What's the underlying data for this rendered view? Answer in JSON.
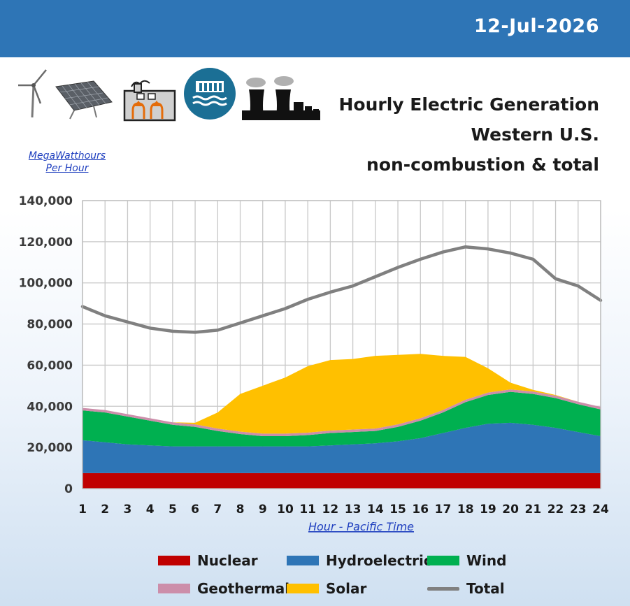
{
  "header": {
    "date": "12-Jul-2026",
    "banner_color": "#2e75b6"
  },
  "icons": [
    "wind-turbine-icon",
    "solar-panel-icon",
    "geothermal-plant-icon",
    "hydro-dam-icon",
    "nuclear-plant-icon"
  ],
  "title": {
    "line1": "Hourly Electric Generation",
    "line2": "Western U.S.",
    "line3": "non-combustion & total"
  },
  "unit_label": {
    "line1": "MegaWatthours",
    "line2": "Per Hour"
  },
  "chart_data": {
    "type": "area",
    "stacked": true,
    "title": "Hourly Electric Generation Western U.S. non-combustion & total",
    "xlabel": "Hour - Pacific Time",
    "ylabel": "MegaWatthours Per Hour",
    "x": [
      1,
      2,
      3,
      4,
      5,
      6,
      7,
      8,
      9,
      10,
      11,
      12,
      13,
      14,
      15,
      16,
      17,
      18,
      19,
      20,
      21,
      22,
      23,
      24
    ],
    "ylim": [
      0,
      140000
    ],
    "yticks": [
      "0",
      "20,000",
      "40,000",
      "60,000",
      "80,000",
      "100,000",
      "120,000",
      "140,000"
    ],
    "ytick_values": [
      0,
      20000,
      40000,
      60000,
      80000,
      100000,
      120000,
      140000
    ],
    "grid": true,
    "legend_position": "bottom",
    "series": [
      {
        "name": "Nuclear",
        "color": "#c00000",
        "kind": "area",
        "values": [
          7500,
          7500,
          7500,
          7500,
          7500,
          7500,
          7500,
          7500,
          7500,
          7500,
          7500,
          7500,
          7500,
          7500,
          7500,
          7500,
          7500,
          7500,
          7500,
          7500,
          7500,
          7500,
          7500,
          7500
        ]
      },
      {
        "name": "Hydroelectric",
        "color": "#2e75b6",
        "kind": "area",
        "values": [
          16000,
          15000,
          14000,
          13500,
          13000,
          13000,
          13000,
          13000,
          13000,
          13000,
          13000,
          13500,
          14000,
          14500,
          15500,
          17000,
          19500,
          22000,
          24000,
          24500,
          23500,
          22000,
          20000,
          18000
        ]
      },
      {
        "name": "Wind",
        "color": "#00b050",
        "kind": "area",
        "values": [
          14500,
          14500,
          13500,
          12000,
          10500,
          9500,
          7500,
          6000,
          5000,
          5000,
          5500,
          6000,
          6000,
          6000,
          7000,
          8500,
          10000,
          12500,
          14000,
          15000,
          15000,
          14500,
          13500,
          13000
        ]
      },
      {
        "name": "Geothermal",
        "color": "#cc8eaa",
        "kind": "area",
        "values": [
          1200,
          1200,
          1200,
          1200,
          1200,
          1200,
          1200,
          1200,
          1200,
          1200,
          1200,
          1200,
          1200,
          1200,
          1200,
          1200,
          1200,
          1200,
          1200,
          1200,
          1200,
          1200,
          1200,
          1200
        ]
      },
      {
        "name": "Solar",
        "color": "#ffc000",
        "kind": "area",
        "values": [
          0,
          0,
          0,
          0,
          0,
          800,
          7800,
          18300,
          23300,
          27300,
          32300,
          34300,
          34300,
          35300,
          33800,
          31300,
          26300,
          20800,
          11800,
          3300,
          800,
          300,
          0,
          0
        ]
      },
      {
        "name": "Total",
        "color": "#808080",
        "kind": "line",
        "values": [
          88500,
          84000,
          81000,
          78000,
          76500,
          76000,
          77000,
          80500,
          84000,
          87500,
          92000,
          95500,
          98500,
          103000,
          107500,
          111500,
          115000,
          117500,
          116500,
          114500,
          111500,
          102000,
          98500,
          91500
        ]
      }
    ]
  }
}
